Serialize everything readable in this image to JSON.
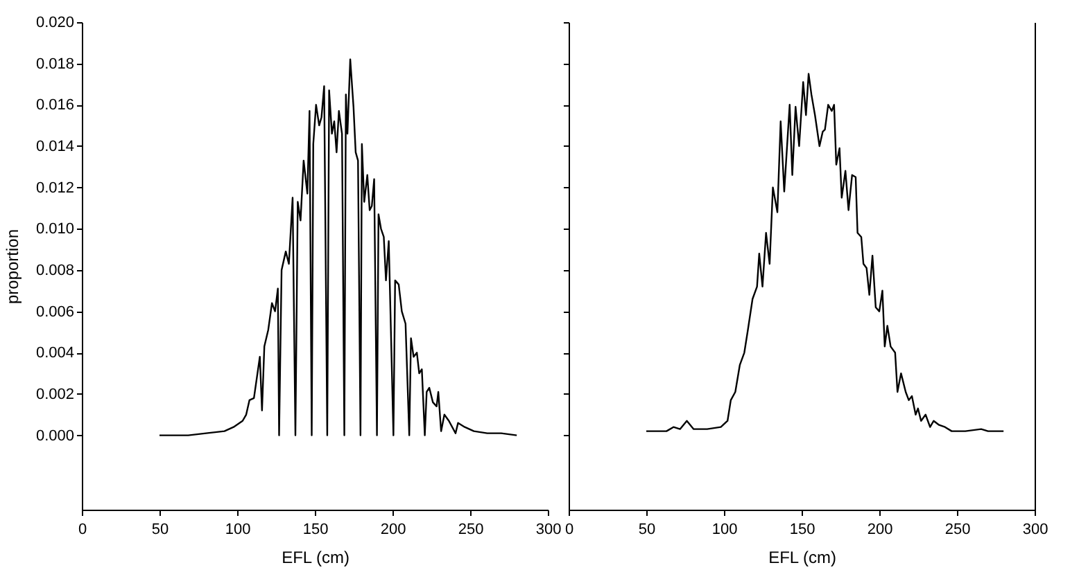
{
  "chart_data": [
    {
      "type": "line",
      "xlabel": "EFL (cm)",
      "ylabel": "proportion",
      "xlim": [
        0,
        300
      ],
      "xticks": [
        0,
        50,
        100,
        150,
        200,
        250,
        {
          "value": 300,
          "label": "300"
        }
      ],
      "ylim": [
        -0.0036,
        0.02
      ],
      "yticks": [
        {
          "value": 0,
          "label": "0.000"
        },
        {
          "value": 0.002,
          "label": "0.002"
        },
        {
          "value": 0.004,
          "label": "0.004"
        },
        {
          "value": 0.006,
          "label": "0.006"
        },
        {
          "value": 0.008,
          "label": "0.008"
        },
        {
          "value": 0.01,
          "label": "0.010"
        },
        {
          "value": 0.012,
          "label": "0.012"
        },
        {
          "value": 0.014,
          "label": "0.014"
        },
        {
          "value": 0.016,
          "label": "0.016"
        },
        {
          "value": 0.018,
          "label": "0.018"
        },
        {
          "value": 0.02,
          "label": "0.020"
        }
      ],
      "grid": false,
      "series": [
        {
          "color": "#000000",
          "x": [
            50,
            68.5,
            80,
            91.8,
            97.7,
            103.5,
            105.8,
            107.9,
            110.8,
            114.6,
            116,
            117.5,
            120,
            122.4,
            124.4,
            126.2,
            127,
            128.6,
            131.3,
            133.3,
            135.7,
            137.5,
            139,
            140.8,
            142.8,
            145.2,
            146.6,
            148,
            149,
            150.8,
            152.8,
            154.3,
            156,
            158,
            159.2,
            161,
            162.5,
            164,
            165.5,
            167.5,
            169,
            170,
            171,
            172.8,
            174.9,
            176.3,
            177.8,
            179.4,
            180.3,
            181.8,
            183.8,
            185.3,
            186.7,
            188.2,
            190,
            191,
            192.6,
            194.4,
            195.8,
            197.6,
            200.6,
            201.7,
            204,
            206,
            208.4,
            210.8,
            211.9,
            213.6,
            215.7,
            217.2,
            218.9,
            220.8,
            222,
            223.7,
            226,
            228.4,
            229.5,
            231.3,
            233.4,
            236.3,
            240.6,
            242.2,
            246.5,
            252.4,
            261,
            270,
            280
          ],
          "values": [
            0,
            0,
            0.0001,
            0.0002,
            0.0004,
            0.0007,
            0.001,
            0.0017,
            0.0018,
            0.0038,
            0.0012,
            0.0043,
            0.0051,
            0.0064,
            0.006,
            0.0071,
            0,
            0.008,
            0.0089,
            0.0083,
            0.0115,
            0,
            0.0113,
            0.0104,
            0.0133,
            0.0117,
            0.0157,
            0,
            0.0141,
            0.016,
            0.015,
            0.0154,
            0.0169,
            0,
            0.0167,
            0.0146,
            0.0152,
            0.0137,
            0.0157,
            0.0146,
            0,
            0.0165,
            0.0146,
            0.0182,
            0.0159,
            0.0137,
            0.0133,
            0,
            0.0141,
            0.0113,
            0.0126,
            0.0109,
            0.0111,
            0.0124,
            0,
            0.0107,
            0.01,
            0.0096,
            0.0075,
            0.0094,
            0,
            0.0075,
            0.0073,
            0.006,
            0.0054,
            0,
            0.0047,
            0.0038,
            0.004,
            0.003,
            0.0032,
            0,
            0.0021,
            0.0023,
            0.0016,
            0.0014,
            0.0021,
            0.0002,
            0.001,
            0.0007,
            0.0001,
            0.0006,
            0.0004,
            0.0002,
            0.0001,
            0.0001,
            0
          ]
        }
      ]
    },
    {
      "type": "line",
      "xlabel": "EFL (cm)",
      "xlim": [
        0,
        300
      ],
      "xticks": [
        {
          "value": 0,
          "label": "0"
        },
        50,
        100,
        150,
        200,
        250,
        300
      ],
      "ylim": [
        -0.0036,
        0.02
      ],
      "yticks": [
        0,
        0.002,
        0.004,
        0.006,
        0.008,
        0.01,
        0.012,
        0.014,
        0.016,
        0.018,
        0.02
      ],
      "tick_labels": "x",
      "grid": false,
      "series": [
        {
          "color": "#000000",
          "x": [
            50,
            63,
            67.5,
            71.7,
            76.1,
            80.5,
            89.2,
            98,
            102.3,
            104.4,
            107.3,
            110.2,
            113.1,
            115.4,
            118.4,
            121.3,
            122.7,
            124.8,
            127.1,
            129.4,
            131.5,
            134.4,
            136.5,
            138.8,
            142.3,
            144,
            146.1,
            148.4,
            151,
            152.8,
            154.5,
            156.3,
            158.6,
            161.5,
            163.6,
            165,
            167.1,
            169.4,
            170.9,
            172.3,
            174.4,
            175.8,
            178.2,
            180.2,
            182.5,
            184.8,
            186,
            188.4,
            189.8,
            191.8,
            193.6,
            195.6,
            197.7,
            200,
            202,
            203.5,
            205.2,
            207.3,
            210.2,
            211.7,
            214,
            217,
            219,
            221,
            223.4,
            224.9,
            226.9,
            229.8,
            232.7,
            235,
            238.5,
            242.3,
            246.6,
            255.4,
            265.6,
            270,
            276,
            280
          ],
          "values": [
            0.0002,
            0.0002,
            0.0004,
            0.0003,
            0.0007,
            0.0003,
            0.0003,
            0.0004,
            0.0007,
            0.0017,
            0.0021,
            0.0034,
            0.004,
            0.0051,
            0.0066,
            0.0072,
            0.0088,
            0.0072,
            0.0098,
            0.0083,
            0.012,
            0.0108,
            0.0152,
            0.0118,
            0.016,
            0.0126,
            0.0159,
            0.014,
            0.0171,
            0.0155,
            0.0175,
            0.0165,
            0.0155,
            0.014,
            0.0147,
            0.0148,
            0.016,
            0.0157,
            0.016,
            0.0131,
            0.0139,
            0.0115,
            0.0128,
            0.0109,
            0.0126,
            0.0125,
            0.0098,
            0.0096,
            0.0083,
            0.0081,
            0.0068,
            0.0087,
            0.0062,
            0.006,
            0.007,
            0.0043,
            0.0053,
            0.0043,
            0.004,
            0.0021,
            0.003,
            0.0021,
            0.0017,
            0.0019,
            0.001,
            0.0013,
            0.0007,
            0.001,
            0.0004,
            0.0007,
            0.0005,
            0.0004,
            0.0002,
            0.0002,
            0.0003,
            0.0002,
            0.0002,
            0.0002
          ]
        }
      ]
    }
  ]
}
